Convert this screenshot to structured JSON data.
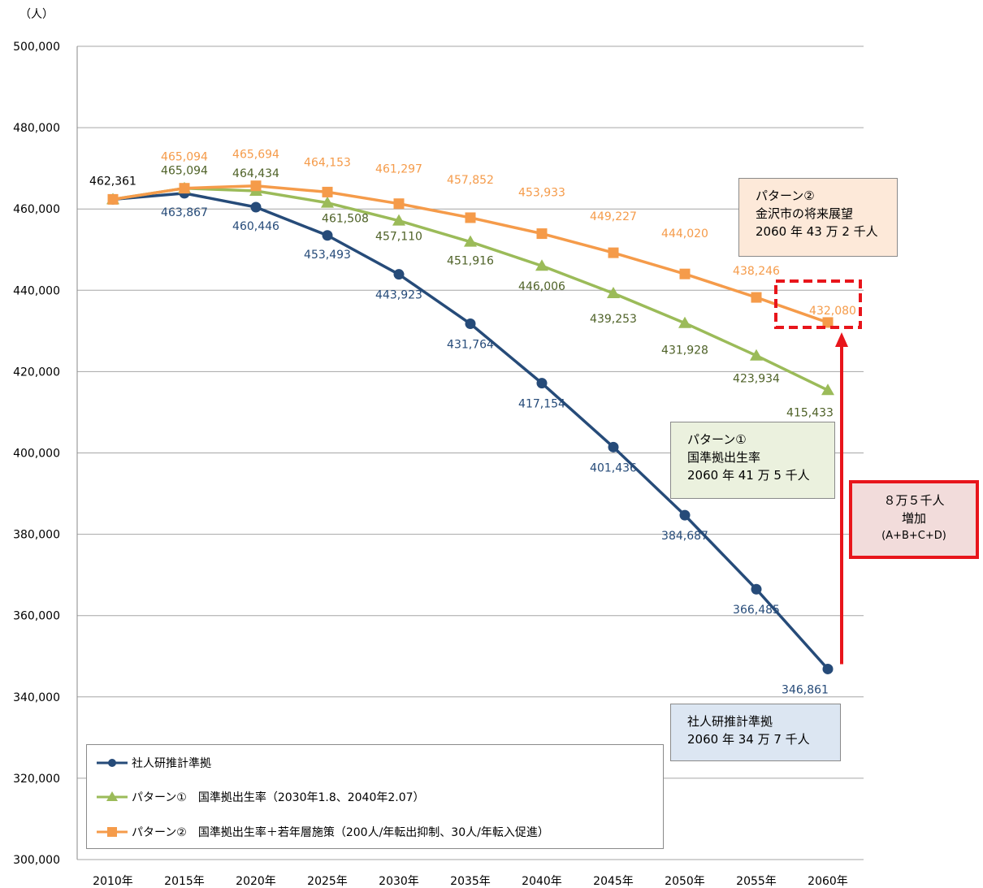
{
  "unit_label": "（人）",
  "colors": {
    "base": "#264b79",
    "pattern1": "#9bbb59",
    "pattern2": "#f59b4a",
    "pattern1_label": "#4f6228",
    "base_label": "#264b79",
    "pattern2_label": "#f59b4a",
    "highlight": "#e8151b"
  },
  "chart_data": {
    "type": "line",
    "ylim": [
      300000,
      500000
    ],
    "yticks": [
      300000,
      320000,
      340000,
      360000,
      380000,
      400000,
      420000,
      440000,
      460000,
      480000,
      500000
    ],
    "ytick_labels": [
      "300,000",
      "320,000",
      "340,000",
      "360,000",
      "380,000",
      "400,000",
      "420,000",
      "440,000",
      "460,000",
      "480,000",
      "500,000"
    ],
    "categories": [
      "2010年",
      "2015年",
      "2020年",
      "2025年",
      "2030年",
      "2035年",
      "2040年",
      "2045年",
      "2050年",
      "2055年",
      "2060年"
    ],
    "grid": true,
    "legend_position": "bottom-left",
    "series": [
      {
        "name": "社人研推計準拠",
        "marker": "circle",
        "values": [
          462361,
          463867,
          460446,
          453493,
          443923,
          431764,
          417154,
          401436,
          384687,
          366485,
          346861
        ],
        "labels": [
          "462,361",
          "463,867",
          "460,446",
          "453,493",
          "443,923",
          "431,764",
          "417,154",
          "401,436",
          "384,687",
          "366,485",
          "346,861"
        ]
      },
      {
        "name": "パターン①　国準拠出生率（2030年1.8、2040年2.07）",
        "marker": "triangle",
        "values": [
          462361,
          465094,
          464434,
          461508,
          457110,
          451916,
          446006,
          439253,
          431928,
          423934,
          415433
        ],
        "labels": [
          "",
          "465,094",
          "464,434",
          "461,508",
          "457,110",
          "451,916",
          "446,006",
          "439,253",
          "431,928",
          "423,934",
          "415,433"
        ]
      },
      {
        "name": "パターン②　国準拠出生率＋若年層施策（200人/年転出抑制、30人/年転入促進）",
        "marker": "square",
        "values": [
          462361,
          465094,
          465694,
          464153,
          461297,
          457852,
          453933,
          449227,
          444020,
          438246,
          432080
        ],
        "labels": [
          "",
          "465,094",
          "465,694",
          "464,153",
          "461,297",
          "457,852",
          "453,933",
          "449,227",
          "444,020",
          "438,246",
          "432,080"
        ]
      }
    ]
  },
  "annotations": {
    "pattern2_box": [
      "パターン②",
      "金沢市の将来展望",
      "2060 年 43 万 2 千人"
    ],
    "pattern1_box": [
      "パターン①",
      "国準拠出生率",
      "2060 年 41 万 5 千人"
    ],
    "base_box": [
      "社人研推計準拠",
      "2060 年 34 万 7 千人"
    ],
    "increase_box": [
      "８万５千人",
      "増加",
      "(A+B+C+D)"
    ]
  },
  "legend": [
    "社人研推計準拠",
    "パターン①　国準拠出生率（2030年1.8、2040年2.07）",
    "パターン②　国準拠出生率＋若年層施策（200人/年転出抑制、30人/年転入促進）"
  ]
}
